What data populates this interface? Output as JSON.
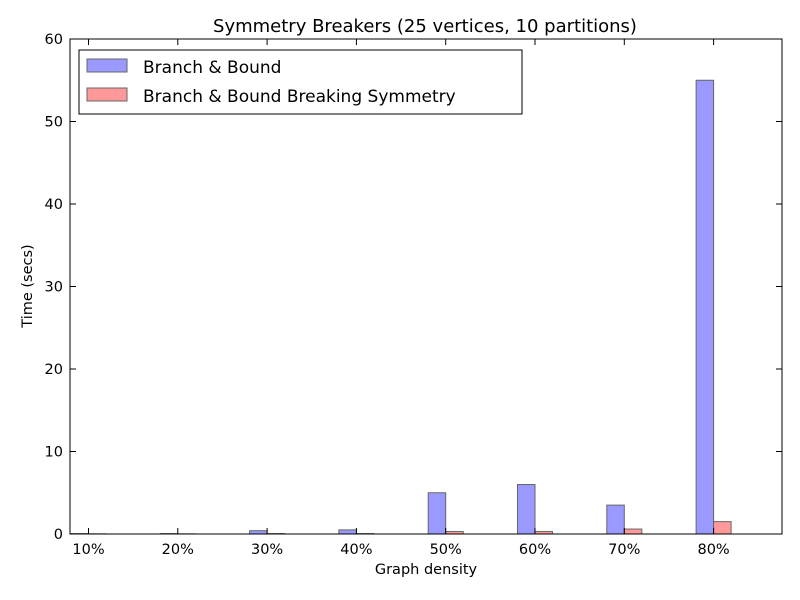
{
  "chart_data": {
    "type": "bar",
    "title": "Symmetry Breakers (25 vertices, 10 partitions)",
    "xlabel": "Graph density",
    "ylabel": "Time (secs)",
    "categories": [
      "10%",
      "20%",
      "30%",
      "40%",
      "50%",
      "60%",
      "70%",
      "80%"
    ],
    "ylim": [
      0,
      60
    ],
    "yticks": [
      0,
      10,
      20,
      30,
      40,
      50,
      60
    ],
    "grid": false,
    "legend_position": "top-left",
    "series": [
      {
        "name": "Branch & Bound",
        "color": "#9999ff",
        "values": [
          0.05,
          0.05,
          0.4,
          0.5,
          5.0,
          6.0,
          3.5,
          55.0
        ]
      },
      {
        "name": "Branch & Bound Breaking Symmetry",
        "color": "#ff9999",
        "values": [
          0.02,
          0.02,
          0.05,
          0.05,
          0.3,
          0.3,
          0.6,
          1.5
        ]
      }
    ]
  }
}
